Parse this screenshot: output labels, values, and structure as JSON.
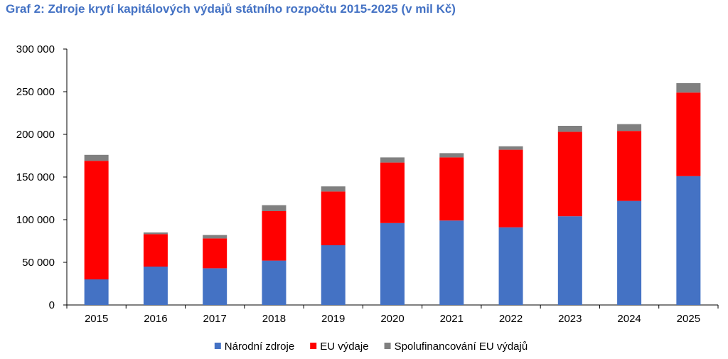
{
  "chart_data": {
    "type": "bar",
    "stacked": true,
    "title": "Graf 2: Zdroje krytí kapitálových výdajů státního rozpočtu 2015-2025 (v mil Kč)",
    "xlabel": "",
    "ylabel": "",
    "ylim": [
      0,
      300000
    ],
    "y_ticks": [
      0,
      50000,
      100000,
      150000,
      200000,
      250000,
      300000
    ],
    "y_tick_labels": [
      "0",
      "50 000",
      "100 000",
      "150 000",
      "200 000",
      "250 000",
      "300 000"
    ],
    "grid": false,
    "legend_position": "bottom",
    "categories": [
      "2015",
      "2016",
      "2017",
      "2018",
      "2019",
      "2020",
      "2021",
      "2022",
      "2023",
      "2024",
      "2025"
    ],
    "series": [
      {
        "name": "Národní zdroje",
        "color": "#4472C4",
        "values": [
          30000,
          45000,
          43000,
          52000,
          70000,
          96000,
          99000,
          91000,
          104000,
          122000,
          151000
        ]
      },
      {
        "name": "EU výdaje",
        "color": "#FF0000",
        "values": [
          139000,
          38000,
          35000,
          58000,
          63000,
          71000,
          74000,
          91000,
          99000,
          82000,
          98000
        ]
      },
      {
        "name": "Spolufinancování EU výdajů",
        "color": "#808080",
        "values": [
          7000,
          2000,
          4000,
          7000,
          6000,
          6000,
          5000,
          4000,
          7000,
          8000,
          11000
        ]
      }
    ]
  }
}
